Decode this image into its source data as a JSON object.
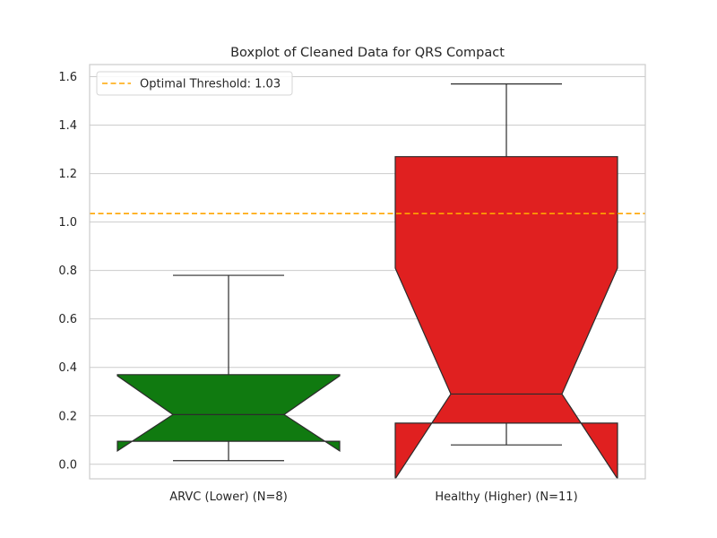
{
  "chart_data": {
    "type": "box",
    "title": "Boxplot of Cleaned Data for QRS Compact",
    "xlabel": "",
    "ylabel": "",
    "ylim": [
      -0.06,
      1.65
    ],
    "yticks": [
      0.0,
      0.2,
      0.4,
      0.6,
      0.8,
      1.0,
      1.2,
      1.4,
      1.6
    ],
    "ytick_labels": [
      "0.0",
      "0.2",
      "0.4",
      "0.6",
      "0.8",
      "1.0",
      "1.2",
      "1.4",
      "1.6"
    ],
    "grid": true,
    "notched": true,
    "legend_position": "top-left",
    "categories": [
      "ARVC (Lower) (N=8)",
      "Healthy (Higher) (N=11)"
    ],
    "boxes": [
      {
        "category": "ARVC (Lower) (N=8)",
        "color": "#107a10",
        "whisker_low": 0.015,
        "q1": 0.095,
        "median": 0.205,
        "q3": 0.37,
        "whisker_high": 0.78,
        "notch_low": 0.055,
        "notch_high": 0.365
      },
      {
        "category": "Healthy (Higher) (N=11)",
        "color": "#e02020",
        "whisker_low": 0.08,
        "q1": 0.17,
        "median": 0.29,
        "q3": 1.27,
        "whisker_high": 1.57,
        "notch_low": -0.06,
        "notch_high": 0.81
      }
    ],
    "threshold": {
      "label": "Optimal Threshold: 1.03",
      "value": 1.035,
      "color": "#ffa500",
      "style": "dashed"
    }
  }
}
